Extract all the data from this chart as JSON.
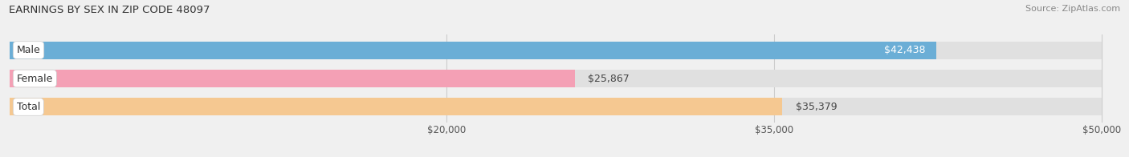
{
  "title": "EARNINGS BY SEX IN ZIP CODE 48097",
  "source": "Source: ZipAtlas.com",
  "categories": [
    "Male",
    "Female",
    "Total"
  ],
  "values": [
    42438,
    25867,
    35379
  ],
  "bar_colors": [
    "#6baed6",
    "#f4a0b5",
    "#f5c891"
  ],
  "value_text_colors": [
    "#ffffff",
    "#555555",
    "#555555"
  ],
  "xmin": 0,
  "xmax": 50000,
  "xlim_min": 0,
  "xlim_max": 50000,
  "xticks": [
    20000,
    35000,
    50000
  ],
  "xtick_labels": [
    "$20,000",
    "$35,000",
    "$50,000"
  ],
  "bar_height": 0.62,
  "background_color": "#f0f0f0",
  "bar_bg_color": "#e0e0e0",
  "title_fontsize": 9.5,
  "source_fontsize": 8,
  "label_fontsize": 9,
  "value_fontsize": 9
}
